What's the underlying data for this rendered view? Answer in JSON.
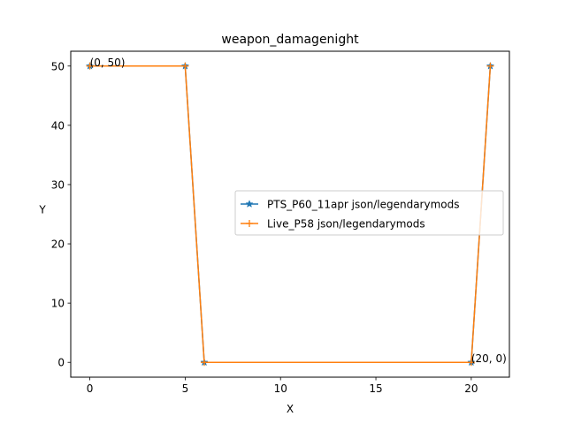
{
  "chart_data": {
    "type": "line",
    "title": "weapon_damagenight",
    "xlabel": "X",
    "ylabel": "Y",
    "xlim": [
      -1,
      22
    ],
    "ylim": [
      -2.5,
      52.5
    ],
    "xticks": [
      0,
      5,
      10,
      15,
      20
    ],
    "yticks": [
      0,
      10,
      20,
      30,
      40,
      50
    ],
    "grid": false,
    "legend_position": "center-right",
    "series": [
      {
        "name": "PTS_P60_11apr json/legendarymods",
        "color": "#1f77b4",
        "marker": "star",
        "x": [
          0,
          5,
          6,
          20,
          21
        ],
        "y": [
          50,
          50,
          0,
          0,
          50
        ]
      },
      {
        "name": "Live_P58 json/legendarymods",
        "color": "#ff7f0e",
        "marker": "plus",
        "x": [
          0,
          5,
          6,
          20,
          21
        ],
        "y": [
          50,
          50,
          0,
          0,
          50
        ]
      }
    ],
    "annotations": [
      {
        "text": "(0, 50)",
        "x": 0,
        "y": 50
      },
      {
        "text": "(20, 0)",
        "x": 20,
        "y": 0
      }
    ]
  }
}
